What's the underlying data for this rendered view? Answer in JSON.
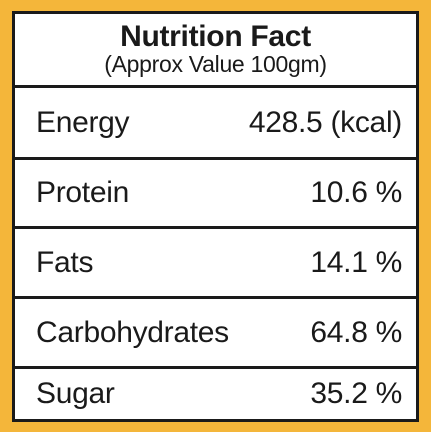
{
  "colors": {
    "border_outer": "#f4b63a",
    "border_inner": "#1a1a1a",
    "text": "#1a1a1a",
    "background": "#ffffff"
  },
  "header": {
    "title": "Nutrition Fact",
    "subtitle": "(Approx Value 100gm)"
  },
  "rows": [
    {
      "label": "Energy",
      "value": "428.5 (kcal)"
    },
    {
      "label": "Protein",
      "value": "10.6 %"
    },
    {
      "label": "Fats",
      "value": "14.1 %"
    },
    {
      "label": "Carbohydrates",
      "value": "64.8 %"
    },
    {
      "label": "Sugar",
      "value": "35.2 %"
    }
  ]
}
